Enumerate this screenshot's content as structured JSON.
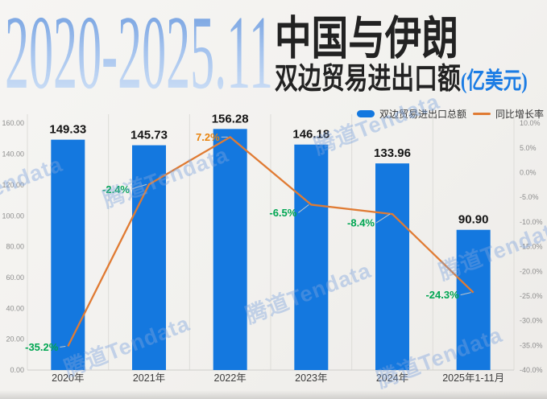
{
  "header": {
    "year_range": "2020-2025.11",
    "title_line1": "中国与伊朗",
    "title_line2": "双边贸易进出口额",
    "unit": "(亿美元)",
    "unit_color": "#1B7CE4",
    "year_gradient": [
      "#6495DC",
      "#A6C4EE",
      "#DCE9F8"
    ]
  },
  "watermark": {
    "text": "腾道Tendata",
    "color": "rgba(127,165,221,0.42)"
  },
  "chart_data": {
    "type": "bar",
    "title": "2020-2025.11 中国与伊朗双边贸易进出口额(亿美元)",
    "categories": [
      "2020年",
      "2021年",
      "2022年",
      "2023年",
      "2024年",
      "2025年1-11月"
    ],
    "series": [
      {
        "name": "双边贸易进出口总额",
        "type": "bar",
        "axis": "left",
        "color": "#1478DF",
        "values": [
          149.33,
          145.73,
          156.28,
          146.18,
          133.96,
          90.9
        ]
      },
      {
        "name": "同比增长率",
        "type": "line",
        "axis": "right",
        "unit": "%",
        "color": "#E07B33",
        "values": [
          -35.2,
          -2.4,
          7.2,
          -6.5,
          -8.4,
          -24.3
        ]
      }
    ],
    "value_labels": [
      "149.33",
      "145.73",
      "156.28",
      "146.18",
      "133.96",
      "90.90"
    ],
    "growth_labels": [
      "-35.2%",
      "-2.4%",
      "7.2%",
      "-6.5%",
      "-8.4%",
      "-24.3%"
    ],
    "left_axis": {
      "min": 0,
      "max": 160,
      "step": 20,
      "ticks": [
        "0.00",
        "20.00",
        "40.00",
        "60.00",
        "80.00",
        "100.00",
        "120.00",
        "140.00",
        "160.00"
      ]
    },
    "right_axis": {
      "min": -40,
      "max": 10,
      "step": 5,
      "ticks": [
        "10.0%",
        "5.0%",
        "0.0%",
        "-5.0%",
        "-10.0%",
        "-15.0%",
        "-20.0%",
        "-25.0%",
        "-30.0%",
        "-35.0%",
        "-40.0%"
      ]
    },
    "label_colors": {
      "positive": "#E8830E",
      "negative": "#00A652"
    },
    "legend_position": "top-right",
    "grid": "vertical-only",
    "ylim_left": [
      0,
      160
    ],
    "ylim_right": [
      -40,
      10
    ]
  }
}
